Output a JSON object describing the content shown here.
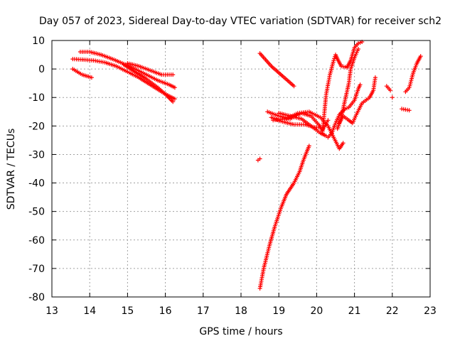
{
  "chart_data": {
    "type": "scatter",
    "title": "Day 057 of 2023, Sidereal Day-to-day VTEC variation (SDTVAR) for receiver sch2",
    "xlabel": "GPS time / hours",
    "ylabel": "SDTVAR / TECUs",
    "xlim": [
      13,
      23
    ],
    "ylim": [
      -80,
      10
    ],
    "xticks": [
      13,
      14,
      15,
      16,
      17,
      18,
      19,
      20,
      21,
      22,
      23
    ],
    "yticks": [
      -80,
      -70,
      -60,
      -50,
      -40,
      -30,
      -20,
      -10,
      0,
      10
    ],
    "grid": true,
    "marker": "+",
    "color": "#ff0000",
    "tracks": [
      [
        [
          13.55,
          3.5
        ],
        [
          13.8,
          3.3
        ],
        [
          14.1,
          3.0
        ],
        [
          14.4,
          2.3
        ],
        [
          14.7,
          1.0
        ],
        [
          15.0,
          -1.0
        ],
        [
          15.3,
          -3.0
        ],
        [
          15.6,
          -5.5
        ],
        [
          15.9,
          -8.0
        ],
        [
          16.1,
          -9.5
        ],
        [
          16.25,
          -10.5
        ]
      ],
      [
        [
          13.75,
          6.0
        ],
        [
          14.0,
          6.0
        ],
        [
          14.3,
          5.0
        ],
        [
          14.6,
          3.5
        ],
        [
          14.9,
          1.8
        ],
        [
          15.2,
          0.0
        ],
        [
          15.5,
          -2.0
        ],
        [
          15.8,
          -4.0
        ],
        [
          16.1,
          -5.5
        ],
        [
          16.25,
          -6.5
        ]
      ],
      [
        [
          14.9,
          1.5
        ],
        [
          15.2,
          -1.0
        ],
        [
          15.5,
          -3.5
        ],
        [
          15.8,
          -6.5
        ],
        [
          16.05,
          -9.5
        ],
        [
          16.2,
          -11.5
        ]
      ],
      [
        [
          13.55,
          0.0
        ],
        [
          13.8,
          -2.0
        ],
        [
          14.05,
          -3.0
        ]
      ],
      [
        [
          15.0,
          2.0
        ],
        [
          15.3,
          1.0
        ],
        [
          15.6,
          -0.5
        ],
        [
          15.9,
          -2.0
        ],
        [
          16.2,
          -2.0
        ]
      ],
      [
        [
          18.45,
          -32.0
        ],
        [
          18.5,
          -31.5
        ]
      ],
      [
        [
          18.5,
          5.5
        ],
        [
          18.8,
          1.0
        ],
        [
          19.1,
          -2.5
        ],
        [
          19.4,
          -6.0
        ]
      ],
      [
        [
          18.5,
          -77.0
        ],
        [
          18.6,
          -70.0
        ],
        [
          18.75,
          -62.0
        ],
        [
          18.9,
          -55.0
        ],
        [
          19.05,
          -49.0
        ],
        [
          19.2,
          -44.0
        ],
        [
          19.4,
          -40.0
        ],
        [
          19.55,
          -36.0
        ],
        [
          19.65,
          -32.0
        ],
        [
          19.8,
          -27.0
        ]
      ],
      [
        [
          18.7,
          -15.0
        ],
        [
          19.0,
          -16.5
        ],
        [
          19.3,
          -17.5
        ],
        [
          19.6,
          -15.5
        ],
        [
          19.85,
          -16.5
        ],
        [
          20.05,
          -19.5
        ],
        [
          20.15,
          -21.5
        ],
        [
          20.3,
          -18.0
        ]
      ],
      [
        [
          18.8,
          -17.0
        ],
        [
          19.1,
          -18.5
        ],
        [
          19.4,
          -19.5
        ],
        [
          19.7,
          -19.5
        ],
        [
          19.95,
          -20.5
        ],
        [
          20.1,
          -20.5
        ]
      ],
      [
        [
          18.85,
          -18.0
        ],
        [
          19.2,
          -17.5
        ],
        [
          19.5,
          -15.5
        ],
        [
          19.8,
          -15.0
        ],
        [
          20.1,
          -17.0
        ],
        [
          20.3,
          -20.0
        ],
        [
          20.45,
          -24.0
        ],
        [
          20.6,
          -28.0
        ],
        [
          20.7,
          -26.0
        ]
      ],
      [
        [
          19.0,
          -15.5
        ],
        [
          19.3,
          -16.5
        ],
        [
          19.6,
          -17.5
        ],
        [
          19.9,
          -20.5
        ],
        [
          20.1,
          -22.5
        ],
        [
          20.25,
          -23.5
        ]
      ],
      [
        [
          20.15,
          -22.5
        ],
        [
          20.2,
          -16.0
        ],
        [
          20.25,
          -9.0
        ],
        [
          20.35,
          -2.0
        ],
        [
          20.45,
          3.0
        ],
        [
          20.5,
          5.0
        ],
        [
          20.55,
          3.5
        ],
        [
          20.65,
          1.0
        ],
        [
          20.8,
          0.5
        ],
        [
          20.9,
          3.0
        ],
        [
          21.0,
          7.5
        ],
        [
          21.1,
          9.0
        ],
        [
          21.2,
          9.5
        ]
      ],
      [
        [
          20.3,
          -24.0
        ],
        [
          20.4,
          -22.5
        ],
        [
          20.5,
          -19.0
        ],
        [
          20.6,
          -16.0
        ],
        [
          20.75,
          -14.0
        ],
        [
          20.85,
          -13.5
        ],
        [
          21.0,
          -11.0
        ],
        [
          21.1,
          -7.0
        ],
        [
          21.15,
          -5.5
        ]
      ],
      [
        [
          20.55,
          -21.0
        ],
        [
          20.65,
          -17.0
        ],
        [
          20.75,
          -11.0
        ],
        [
          20.85,
          -5.0
        ],
        [
          20.9,
          0.0
        ],
        [
          21.0,
          4.0
        ],
        [
          21.1,
          7.0
        ]
      ],
      [
        [
          20.6,
          -19.0
        ],
        [
          20.7,
          -16.5
        ],
        [
          20.85,
          -18.0
        ],
        [
          20.95,
          -19.0
        ],
        [
          21.05,
          -16.0
        ],
        [
          21.2,
          -12.0
        ],
        [
          21.4,
          -10.0
        ],
        [
          21.5,
          -7.5
        ],
        [
          21.55,
          -3.0
        ]
      ],
      [
        [
          21.85,
          -6.0
        ],
        [
          21.95,
          -7.5
        ]
      ],
      [
        [
          22.0,
          -10.0
        ]
      ],
      [
        [
          22.25,
          -14.0
        ],
        [
          22.45,
          -14.5
        ]
      ],
      [
        [
          22.35,
          -8.0
        ],
        [
          22.45,
          -6.5
        ],
        [
          22.55,
          -1.5
        ],
        [
          22.65,
          2.0
        ],
        [
          22.75,
          4.5
        ]
      ]
    ]
  }
}
